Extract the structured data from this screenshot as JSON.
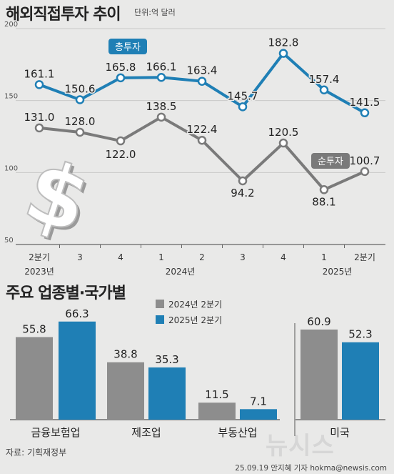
{
  "header": {
    "title": "해외직접투자 추이",
    "unit": "단위:억 달러"
  },
  "colors": {
    "total": "#1f7fb5",
    "net": "#7a7a7a",
    "bar2024": "#8d8d8d",
    "bar2025": "#1f7fb5"
  },
  "chart_data": [
    {
      "type": "line",
      "categories": [
        "2분기",
        "3",
        "4",
        "1",
        "2",
        "3",
        "4",
        "1",
        "2분기"
      ],
      "year_labels": [
        "2023년",
        "2024년",
        "2025년"
      ],
      "y_ticks": [
        "200",
        "150",
        "100",
        "50"
      ],
      "ylim": [
        50,
        200
      ],
      "series": [
        {
          "name": "총투자",
          "values": [
            161.1,
            150.6,
            165.8,
            166.1,
            163.4,
            145.7,
            182.8,
            157.4,
            141.5
          ],
          "labels": [
            "161.1",
            "150.6",
            "165.8",
            "166.1",
            "163.4",
            "145.7",
            "182.8",
            "157.4",
            "141.5"
          ]
        },
        {
          "name": "순투자",
          "values": [
            131.0,
            128.0,
            122.0,
            138.5,
            122.4,
            94.2,
            120.5,
            88.1,
            100.7
          ],
          "labels": [
            "131.0",
            "128.0",
            "122.0",
            "138.5",
            "122.4",
            "94.2",
            "120.5",
            "88.1",
            "100.7"
          ]
        }
      ]
    },
    {
      "type": "bar",
      "title": "주요 업종별·국가별",
      "categories": [
        "금융보험업",
        "제조업",
        "부동산업",
        "미국"
      ],
      "series": [
        {
          "name": "2024년 2분기",
          "values": [
            55.8,
            38.8,
            11.5,
            60.9
          ],
          "labels": [
            "55.8",
            "38.8",
            "11.5",
            "60.9"
          ]
        },
        {
          "name": "2025년 2분기",
          "values": [
            66.3,
            35.3,
            7.1,
            52.3
          ],
          "labels": [
            "66.3",
            "35.3",
            "7.1",
            "52.3"
          ]
        }
      ]
    }
  ],
  "footer": {
    "source": "자료: 기획재정부",
    "credit": "25.09.19 안지혜 기자 hokma@newsis.com",
    "logo": "뉴시스"
  }
}
